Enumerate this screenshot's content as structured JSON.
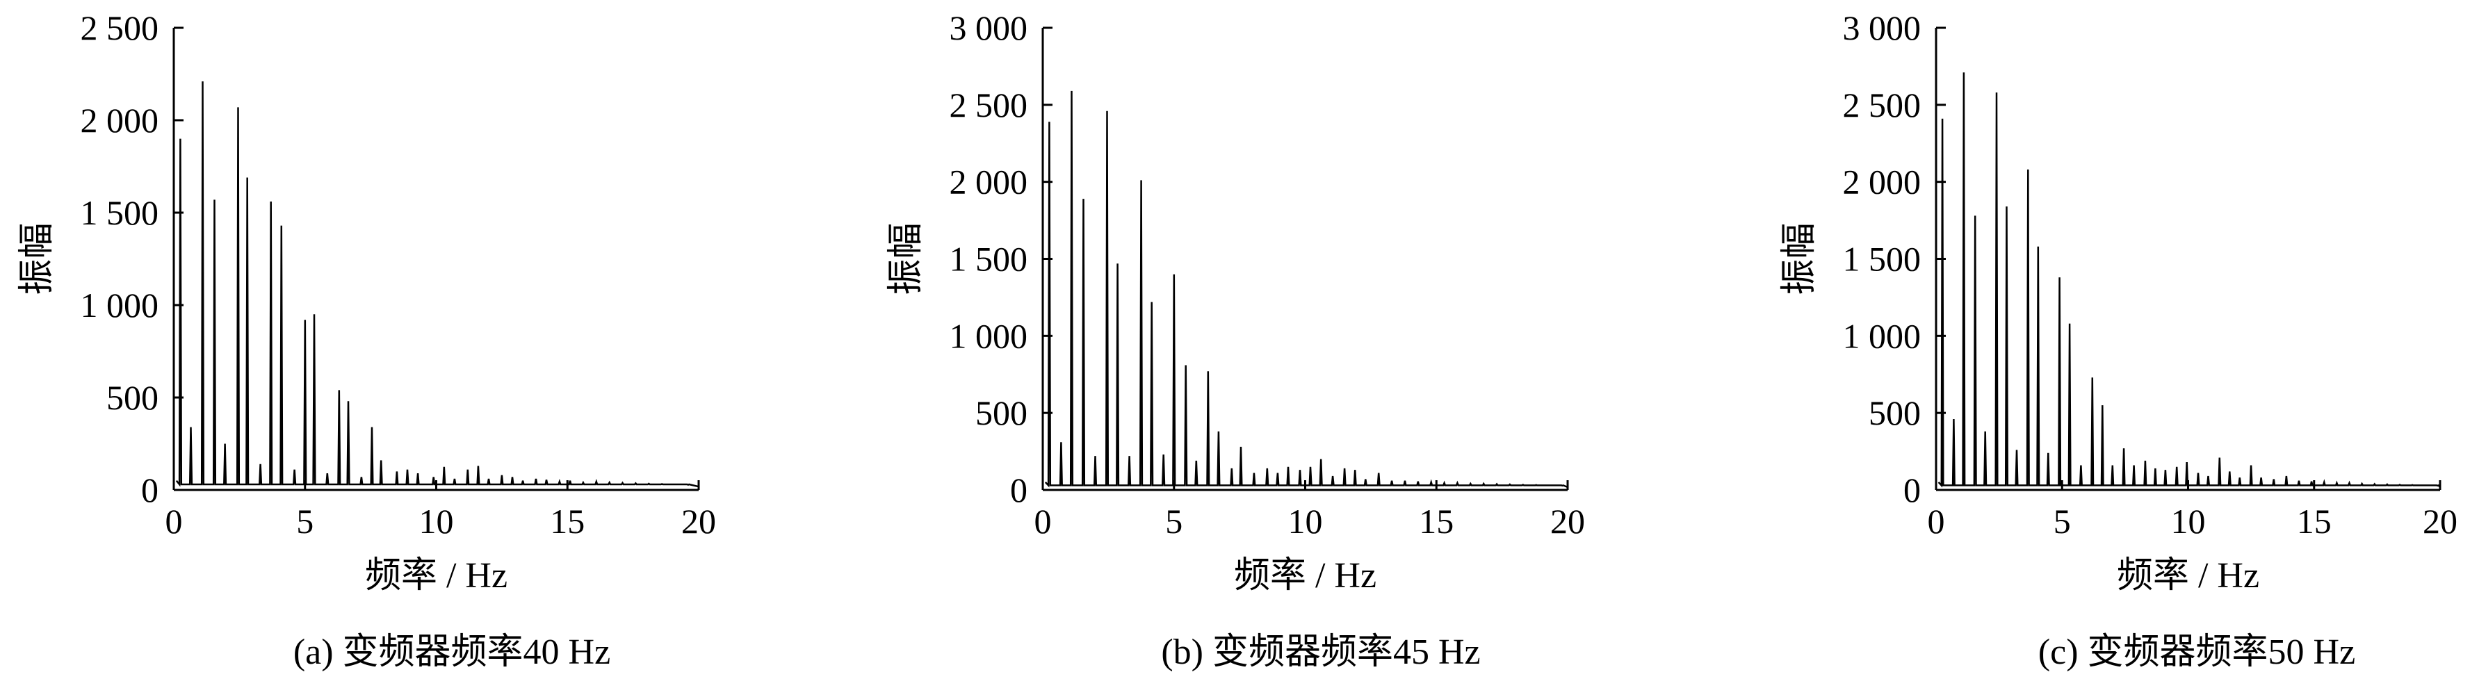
{
  "figure": {
    "line_color": "#000000",
    "background": "#ffffff"
  },
  "chart_data": [
    {
      "type": "line",
      "caption": "(a)  变频器频率40 Hz",
      "xlabel": "频率 / Hz",
      "ylabel": "振幅",
      "xlim": [
        0,
        20
      ],
      "ylim": [
        0,
        2500
      ],
      "xticks": [
        0,
        5,
        10,
        15,
        20
      ],
      "yticks": [
        0,
        500,
        1000,
        1500,
        2000,
        2500
      ],
      "xtick_labels": [
        "0",
        "5",
        "10",
        "15",
        "20"
      ],
      "ytick_labels": [
        "0",
        "500",
        "1 000",
        "1 500",
        "2 000",
        "2 500"
      ],
      "grid": false,
      "legend": "none",
      "baseline": 30,
      "peaks": [
        {
          "x": 0.25,
          "y": 1900
        },
        {
          "x": 0.65,
          "y": 340
        },
        {
          "x": 1.1,
          "y": 2210
        },
        {
          "x": 1.55,
          "y": 1570
        },
        {
          "x": 1.95,
          "y": 250
        },
        {
          "x": 2.45,
          "y": 2070
        },
        {
          "x": 2.8,
          "y": 1690
        },
        {
          "x": 3.3,
          "y": 140
        },
        {
          "x": 3.7,
          "y": 1560
        },
        {
          "x": 4.1,
          "y": 1430
        },
        {
          "x": 4.6,
          "y": 110
        },
        {
          "x": 5.0,
          "y": 920
        },
        {
          "x": 5.35,
          "y": 950
        },
        {
          "x": 5.85,
          "y": 90
        },
        {
          "x": 6.3,
          "y": 540
        },
        {
          "x": 6.65,
          "y": 480
        },
        {
          "x": 7.15,
          "y": 70
        },
        {
          "x": 7.55,
          "y": 340
        },
        {
          "x": 7.9,
          "y": 160
        },
        {
          "x": 8.5,
          "y": 100
        },
        {
          "x": 8.9,
          "y": 110
        },
        {
          "x": 9.3,
          "y": 90
        },
        {
          "x": 9.9,
          "y": 70
        },
        {
          "x": 10.3,
          "y": 125
        },
        {
          "x": 10.7,
          "y": 60
        },
        {
          "x": 11.2,
          "y": 110
        },
        {
          "x": 11.6,
          "y": 130
        },
        {
          "x": 12.0,
          "y": 60
        },
        {
          "x": 12.5,
          "y": 80
        },
        {
          "x": 12.9,
          "y": 70
        },
        {
          "x": 13.3,
          "y": 50
        },
        {
          "x": 13.8,
          "y": 60
        },
        {
          "x": 14.2,
          "y": 55
        },
        {
          "x": 14.7,
          "y": 45
        },
        {
          "x": 15.1,
          "y": 50
        },
        {
          "x": 15.6,
          "y": 40
        },
        {
          "x": 16.1,
          "y": 45
        },
        {
          "x": 16.6,
          "y": 40
        },
        {
          "x": 17.1,
          "y": 38
        },
        {
          "x": 17.6,
          "y": 36
        },
        {
          "x": 18.1,
          "y": 34
        },
        {
          "x": 18.6,
          "y": 32
        },
        {
          "x": 19.1,
          "y": 30
        },
        {
          "x": 19.6,
          "y": 28
        }
      ]
    },
    {
      "type": "line",
      "caption": "(b)  变频器频率45 Hz",
      "xlabel": "频率 / Hz",
      "ylabel": "振幅",
      "xlim": [
        0,
        20
      ],
      "ylim": [
        0,
        3000
      ],
      "xticks": [
        0,
        5,
        10,
        15,
        20
      ],
      "yticks": [
        0,
        500,
        1000,
        1500,
        2000,
        2500,
        3000
      ],
      "xtick_labels": [
        "0",
        "5",
        "10",
        "15",
        "20"
      ],
      "ytick_labels": [
        "0",
        "500",
        "1 000",
        "1 500",
        "2 000",
        "2 500",
        "3 000"
      ],
      "grid": false,
      "legend": "none",
      "baseline": 30,
      "peaks": [
        {
          "x": 0.25,
          "y": 2390
        },
        {
          "x": 0.7,
          "y": 310
        },
        {
          "x": 1.1,
          "y": 2590
        },
        {
          "x": 1.55,
          "y": 1890
        },
        {
          "x": 2.0,
          "y": 220
        },
        {
          "x": 2.45,
          "y": 2460
        },
        {
          "x": 2.85,
          "y": 1470
        },
        {
          "x": 3.3,
          "y": 220
        },
        {
          "x": 3.75,
          "y": 2010
        },
        {
          "x": 4.15,
          "y": 1220
        },
        {
          "x": 4.6,
          "y": 230
        },
        {
          "x": 5.0,
          "y": 1400
        },
        {
          "x": 5.45,
          "y": 810
        },
        {
          "x": 5.85,
          "y": 190
        },
        {
          "x": 6.3,
          "y": 770
        },
        {
          "x": 6.7,
          "y": 380
        },
        {
          "x": 7.2,
          "y": 140
        },
        {
          "x": 7.55,
          "y": 280
        },
        {
          "x": 8.05,
          "y": 110
        },
        {
          "x": 8.55,
          "y": 140
        },
        {
          "x": 8.95,
          "y": 110
        },
        {
          "x": 9.35,
          "y": 150
        },
        {
          "x": 9.8,
          "y": 130
        },
        {
          "x": 10.2,
          "y": 150
        },
        {
          "x": 10.6,
          "y": 200
        },
        {
          "x": 11.05,
          "y": 90
        },
        {
          "x": 11.5,
          "y": 140
        },
        {
          "x": 11.9,
          "y": 130
        },
        {
          "x": 12.3,
          "y": 70
        },
        {
          "x": 12.8,
          "y": 110
        },
        {
          "x": 13.3,
          "y": 60
        },
        {
          "x": 13.8,
          "y": 60
        },
        {
          "x": 14.3,
          "y": 55
        },
        {
          "x": 14.8,
          "y": 50
        },
        {
          "x": 15.3,
          "y": 45
        },
        {
          "x": 15.8,
          "y": 45
        },
        {
          "x": 16.3,
          "y": 40
        },
        {
          "x": 16.8,
          "y": 40
        },
        {
          "x": 17.3,
          "y": 38
        },
        {
          "x": 17.8,
          "y": 36
        },
        {
          "x": 18.3,
          "y": 34
        },
        {
          "x": 18.8,
          "y": 32
        },
        {
          "x": 19.3,
          "y": 30
        },
        {
          "x": 19.8,
          "y": 28
        }
      ]
    },
    {
      "type": "line",
      "caption": "(c)  变频器频率50 Hz",
      "xlabel": "频率 / Hz",
      "ylabel": "振幅",
      "xlim": [
        0,
        20
      ],
      "ylim": [
        0,
        3000
      ],
      "xticks": [
        0,
        5,
        10,
        15,
        20
      ],
      "yticks": [
        0,
        500,
        1000,
        1500,
        2000,
        2500,
        3000
      ],
      "xtick_labels": [
        "0",
        "5",
        "10",
        "15",
        "20"
      ],
      "ytick_labels": [
        "0",
        "500",
        "1 000",
        "1 500",
        "2 000",
        "2 500",
        "3 000"
      ],
      "grid": false,
      "legend": "none",
      "baseline": 30,
      "peaks": [
        {
          "x": 0.25,
          "y": 2410
        },
        {
          "x": 0.7,
          "y": 460
        },
        {
          "x": 1.1,
          "y": 2710
        },
        {
          "x": 1.55,
          "y": 1780
        },
        {
          "x": 1.95,
          "y": 380
        },
        {
          "x": 2.4,
          "y": 2580
        },
        {
          "x": 2.8,
          "y": 1840
        },
        {
          "x": 3.2,
          "y": 260
        },
        {
          "x": 3.65,
          "y": 2080
        },
        {
          "x": 4.05,
          "y": 1580
        },
        {
          "x": 4.45,
          "y": 240
        },
        {
          "x": 4.9,
          "y": 1380
        },
        {
          "x": 5.3,
          "y": 1080
        },
        {
          "x": 5.75,
          "y": 160
        },
        {
          "x": 6.2,
          "y": 730
        },
        {
          "x": 6.6,
          "y": 550
        },
        {
          "x": 7.0,
          "y": 160
        },
        {
          "x": 7.45,
          "y": 270
        },
        {
          "x": 7.85,
          "y": 160
        },
        {
          "x": 8.3,
          "y": 190
        },
        {
          "x": 8.7,
          "y": 140
        },
        {
          "x": 9.1,
          "y": 130
        },
        {
          "x": 9.55,
          "y": 150
        },
        {
          "x": 9.95,
          "y": 180
        },
        {
          "x": 10.4,
          "y": 110
        },
        {
          "x": 10.8,
          "y": 90
        },
        {
          "x": 11.25,
          "y": 210
        },
        {
          "x": 11.65,
          "y": 120
        },
        {
          "x": 12.05,
          "y": 80
        },
        {
          "x": 12.5,
          "y": 160
        },
        {
          "x": 12.9,
          "y": 80
        },
        {
          "x": 13.4,
          "y": 70
        },
        {
          "x": 13.9,
          "y": 90
        },
        {
          "x": 14.4,
          "y": 60
        },
        {
          "x": 14.9,
          "y": 55
        },
        {
          "x": 15.4,
          "y": 50
        },
        {
          "x": 15.9,
          "y": 45
        },
        {
          "x": 16.4,
          "y": 45
        },
        {
          "x": 16.9,
          "y": 40
        },
        {
          "x": 17.4,
          "y": 38
        },
        {
          "x": 17.9,
          "y": 36
        },
        {
          "x": 18.4,
          "y": 34
        },
        {
          "x": 18.9,
          "y": 32
        },
        {
          "x": 19.4,
          "y": 30
        },
        {
          "x": 19.9,
          "y": 28
        }
      ]
    }
  ]
}
